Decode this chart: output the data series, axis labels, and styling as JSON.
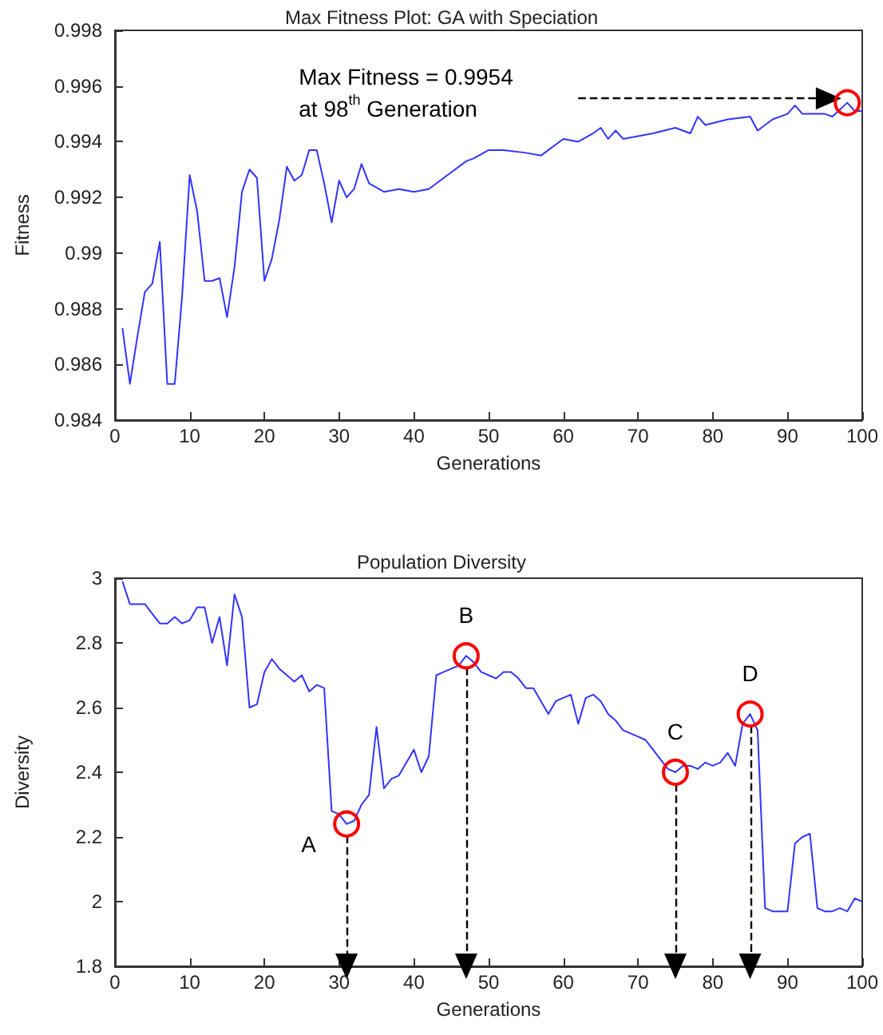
{
  "chart_data": [
    {
      "type": "line",
      "title": "Max Fitness Plot: GA with Speciation",
      "xlabel": "Generations",
      "ylabel": "Fitness",
      "x": [
        1,
        2,
        3,
        4,
        5,
        6,
        7,
        8,
        9,
        10,
        11,
        12,
        13,
        14,
        15,
        16,
        17,
        18,
        19,
        20,
        21,
        22,
        23,
        24,
        25,
        26,
        27,
        28,
        29,
        30,
        31,
        32,
        33,
        34,
        36,
        38,
        40,
        42,
        44,
        45,
        47,
        48,
        50,
        52,
        55,
        57,
        60,
        62,
        64,
        65,
        66,
        67,
        68,
        70,
        72,
        75,
        77,
        78,
        79,
        82,
        85,
        86,
        88,
        90,
        91,
        92,
        95,
        96,
        98,
        99,
        100
      ],
      "series": [
        {
          "color": "#3333ff",
          "values": [
            0.9873,
            0.9853,
            0.987,
            0.9886,
            0.9889,
            0.9904,
            0.9853,
            0.9853,
            0.9885,
            0.9928,
            0.9915,
            0.989,
            0.989,
            0.9891,
            0.9877,
            0.9895,
            0.9922,
            0.993,
            0.9927,
            0.989,
            0.9898,
            0.9912,
            0.9931,
            0.9926,
            0.9928,
            0.9937,
            0.9937,
            0.9925,
            0.9911,
            0.9926,
            0.992,
            0.9923,
            0.9932,
            0.9925,
            0.9922,
            0.9923,
            0.9922,
            0.9923,
            0.9927,
            0.9929,
            0.9933,
            0.9934,
            0.9937,
            0.9937,
            0.9936,
            0.9935,
            0.9941,
            0.994,
            0.9943,
            0.9945,
            0.9941,
            0.9944,
            0.9941,
            0.9942,
            0.9943,
            0.9945,
            0.9943,
            0.9949,
            0.9946,
            0.9948,
            0.9949,
            0.9944,
            0.9948,
            0.995,
            0.9953,
            0.995,
            0.995,
            0.9949,
            0.9954,
            0.9951,
            0.9951
          ]
        }
      ],
      "xlim": [
        0,
        100
      ],
      "xticks": [
        0,
        10,
        20,
        30,
        40,
        50,
        60,
        70,
        80,
        90,
        100
      ],
      "ylim": [
        0.984,
        0.998
      ],
      "yticks": [
        0.984,
        0.986,
        0.988,
        0.99,
        0.992,
        0.994,
        0.996,
        0.998
      ],
      "grid": false,
      "marker": "none",
      "line_style": "solid",
      "annotations": [
        "Max Fitness = 0.9954\nat 98$^{th}$ Generation"
      ]
    },
    {
      "type": "line",
      "title": "Population Diversity",
      "xlabel": "Generations",
      "ylabel": "Diversity",
      "x": [
        1,
        2,
        3,
        4,
        5,
        6,
        7,
        8,
        9,
        10,
        11,
        12,
        13,
        14,
        15,
        16,
        17,
        18,
        19,
        20,
        21,
        22,
        23,
        24,
        25,
        26,
        27,
        28,
        29,
        30,
        31,
        32,
        33,
        34,
        35,
        36,
        37,
        38,
        39,
        40,
        41,
        42,
        43,
        44,
        45,
        46,
        47,
        48,
        49,
        50,
        51,
        52,
        53,
        54,
        55,
        56,
        57,
        58,
        59,
        60,
        61,
        62,
        63,
        64,
        65,
        66,
        67,
        68,
        69,
        70,
        71,
        72,
        73,
        74,
        75,
        76,
        77,
        78,
        79,
        80,
        81,
        82,
        83,
        84,
        85,
        86,
        87,
        88,
        89,
        90,
        91,
        92,
        93,
        94,
        95,
        96,
        97,
        98,
        99,
        100
      ],
      "series": [
        {
          "color": "#3333ff",
          "values": [
            2.99,
            2.92,
            2.92,
            2.92,
            2.89,
            2.86,
            2.86,
            2.88,
            2.86,
            2.87,
            2.91,
            2.91,
            2.8,
            2.88,
            2.73,
            2.95,
            2.88,
            2.6,
            2.61,
            2.71,
            2.75,
            2.72,
            2.7,
            2.68,
            2.7,
            2.65,
            2.67,
            2.66,
            2.28,
            2.27,
            2.24,
            2.25,
            2.3,
            2.33,
            2.54,
            2.35,
            2.38,
            2.39,
            2.43,
            2.47,
            2.4,
            2.45,
            2.7,
            2.71,
            2.72,
            2.73,
            2.76,
            2.74,
            2.71,
            2.7,
            2.69,
            2.71,
            2.71,
            2.69,
            2.66,
            2.66,
            2.62,
            2.58,
            2.62,
            2.63,
            2.64,
            2.55,
            2.63,
            2.64,
            2.62,
            2.58,
            2.56,
            2.53,
            2.52,
            2.51,
            2.5,
            2.47,
            2.44,
            2.41,
            2.4,
            2.42,
            2.42,
            2.41,
            2.43,
            2.42,
            2.43,
            2.46,
            2.42,
            2.55,
            2.58,
            2.53,
            1.98,
            1.97,
            1.97,
            1.97,
            2.18,
            2.2,
            2.21,
            1.98,
            1.97,
            1.97,
            1.98,
            1.97,
            2.01,
            2
          ]
        }
      ],
      "xlim": [
        0,
        100
      ],
      "xticks": [
        0,
        10,
        20,
        30,
        40,
        50,
        60,
        70,
        80,
        90,
        100
      ],
      "ylim": [
        1.8,
        3
      ],
      "yticks": [
        1.8,
        2,
        2.2,
        2.4,
        2.6,
        2.8,
        3
      ],
      "grid": false,
      "marker": "none",
      "line_style": "solid",
      "annotations": [
        {
          "text": "A",
          "x": 31,
          "y": 2.24
        },
        {
          "text": "B",
          "x": 47,
          "y": 2.76
        },
        {
          "text": "C",
          "x": 75,
          "y": 2.4
        },
        {
          "text": "D",
          "x": 85,
          "y": 2.58
        }
      ]
    }
  ]
}
